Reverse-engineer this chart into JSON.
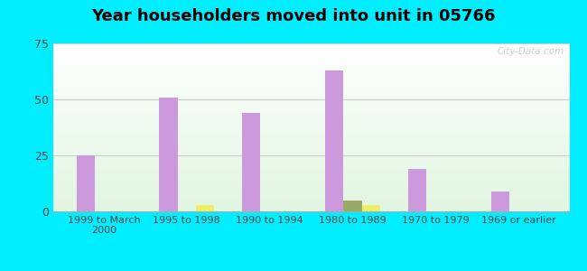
{
  "title": "Year householders moved into unit in 05766",
  "categories": [
    "1999 to March\n2000",
    "1995 to 1998",
    "1990 to 1994",
    "1980 to 1989",
    "1970 to 1979",
    "1969 or earlier"
  ],
  "series": {
    "White Non-Hispanic": [
      25,
      51,
      44,
      63,
      19,
      9
    ],
    "American Indian and Alaska Native": [
      0,
      0,
      0,
      5,
      0,
      0
    ],
    "Two or More Races": [
      0,
      3,
      0,
      3,
      0,
      0
    ]
  },
  "colors": {
    "White Non-Hispanic": "#cc99dd",
    "American Indian and Alaska Native": "#99aa66",
    "Two or More Races": "#eeee66"
  },
  "legend_colors": {
    "White Non-Hispanic": "#dd99cc",
    "American Indian and Alaska Native": "#bbbb88",
    "Two or More Races": "#eeee88"
  },
  "ylim": [
    0,
    75
  ],
  "yticks": [
    0,
    25,
    50,
    75
  ],
  "background_outer": "#00eeff",
  "grid_color": "#ccddcc",
  "bar_width": 0.22,
  "watermark": "City-Data.com",
  "legend_text_color": "#005577",
  "title_color": "#000000",
  "title_fontsize": 13
}
